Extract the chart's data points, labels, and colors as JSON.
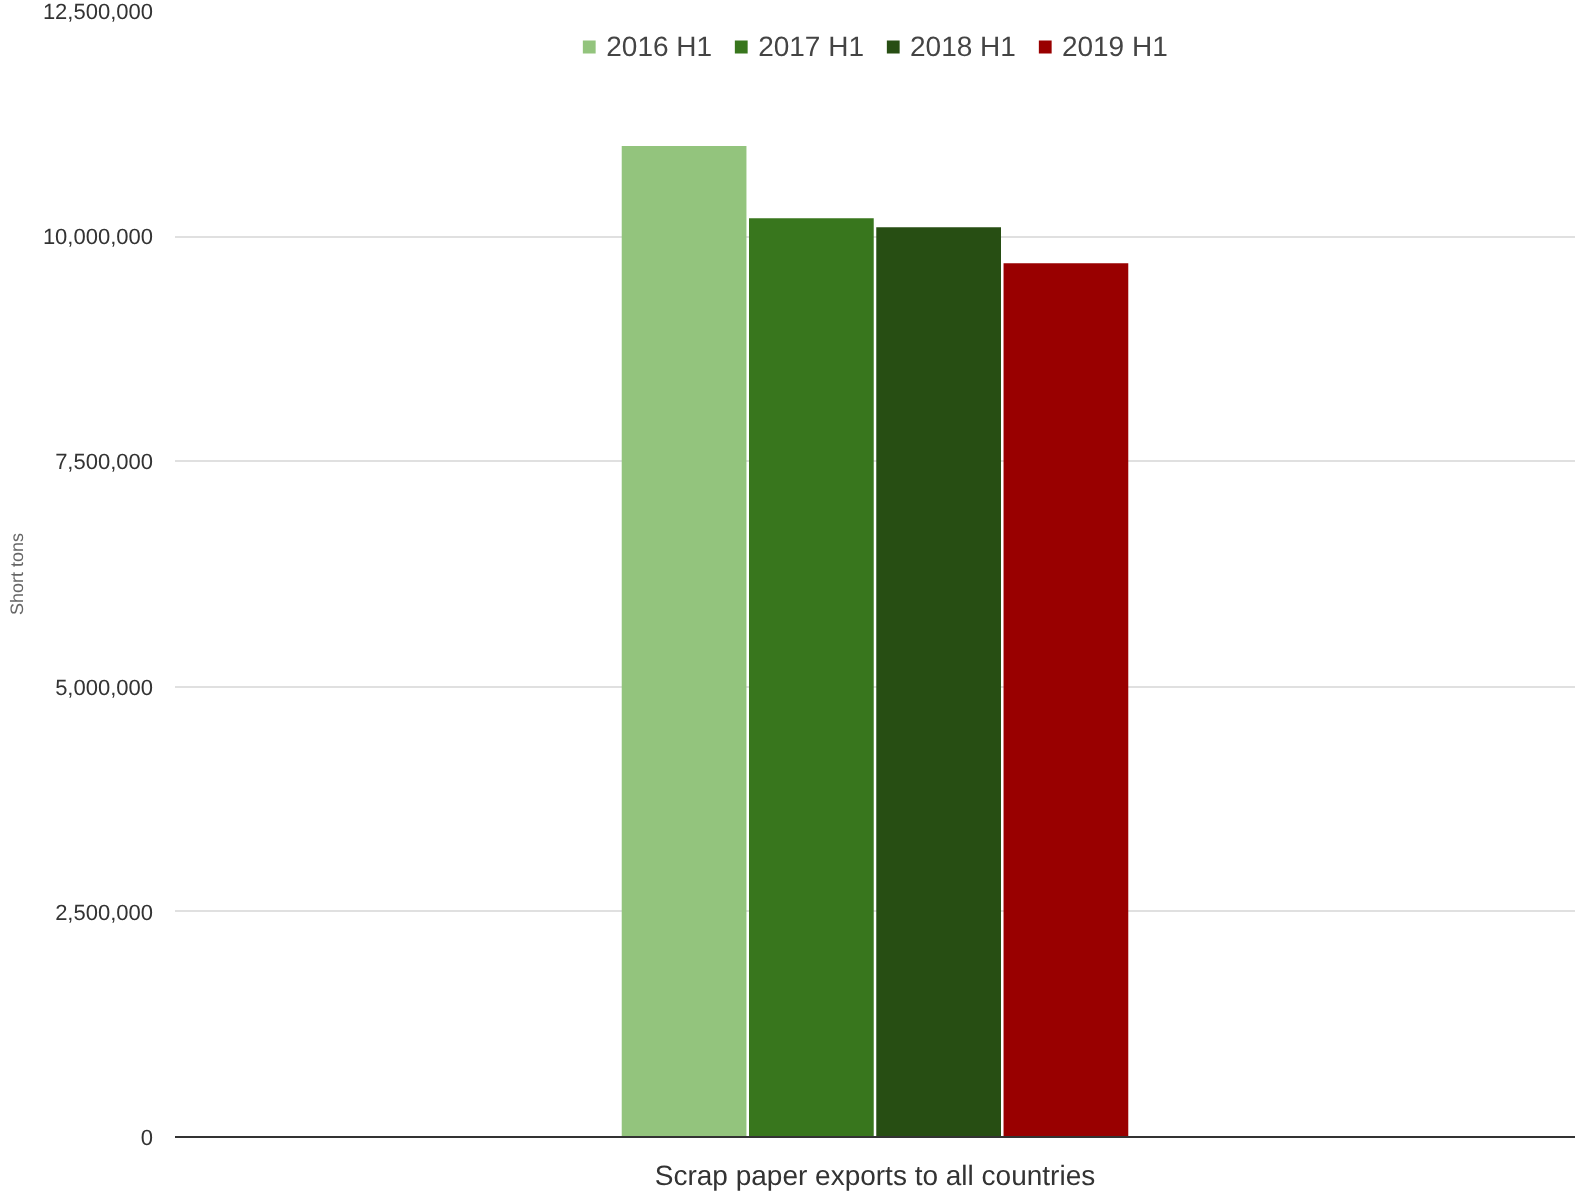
{
  "chart_data": {
    "type": "bar",
    "ylabel": "Short tons",
    "categories": [
      "Scrap paper exports to all countries"
    ],
    "series": [
      {
        "name": "2016 H1",
        "color": "#93c47d",
        "values": [
          11000000
        ]
      },
      {
        "name": "2017 H1",
        "color": "#38761d",
        "values": [
          10200000
        ]
      },
      {
        "name": "2018 H1",
        "color": "#274e13",
        "values": [
          10100000
        ]
      },
      {
        "name": "2019 H1",
        "color": "#990000",
        "values": [
          9700000
        ]
      }
    ],
    "ylim": [
      0,
      12500000
    ],
    "yticks": [
      {
        "value": 0,
        "label": "0"
      },
      {
        "value": 2500000,
        "label": "2,500,000"
      },
      {
        "value": 5000000,
        "label": "5,000,000"
      },
      {
        "value": 7500000,
        "label": "7,500,000"
      },
      {
        "value": 10000000,
        "label": "10,000,000"
      },
      {
        "value": 12500000,
        "label": "12,500,000"
      }
    ],
    "grid": "y",
    "legend": "top"
  }
}
